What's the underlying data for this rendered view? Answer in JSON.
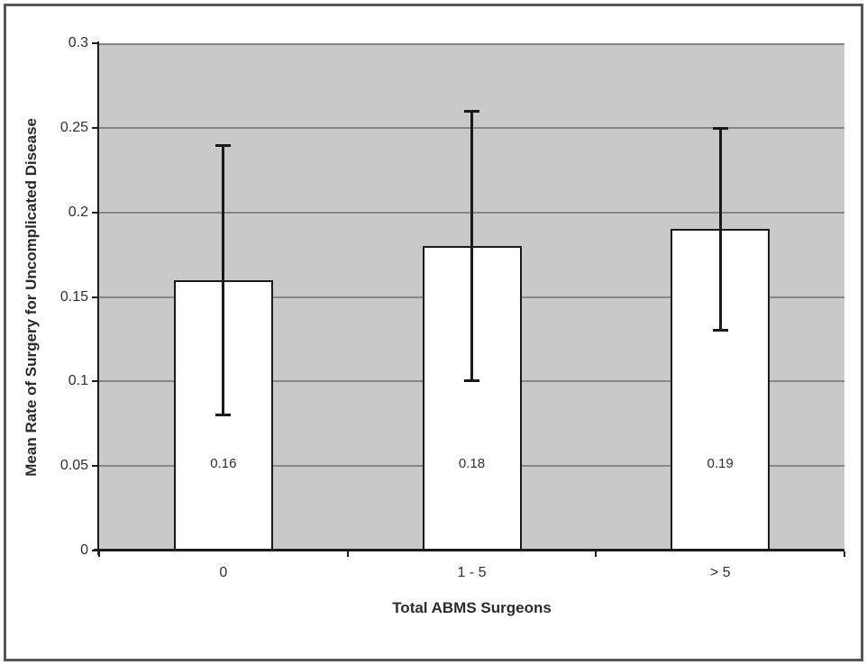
{
  "figure": {
    "background": "#ffffff",
    "border_color": "#565656"
  },
  "chart_data": {
    "type": "bar",
    "title": "",
    "xlabel": "Total ABMS Surgeons",
    "ylabel": "Mean Rate of Surgery for Uncomplicated Disease",
    "categories": [
      "0",
      "1 - 5",
      "> 5"
    ],
    "values": [
      0.16,
      0.18,
      0.19
    ],
    "bar_labels": [
      "0.16",
      "0.18",
      "0.19"
    ],
    "error_high": [
      0.24,
      0.26,
      0.25
    ],
    "error_low": [
      0.08,
      0.1,
      0.13
    ],
    "ylim": [
      0,
      0.3
    ],
    "ytick_step": 0.05,
    "ytick_labels": [
      "0",
      "0.05",
      "0.1",
      "0.15",
      "0.2",
      "0.25",
      "0.3"
    ],
    "ytick_values": [
      0,
      0.05,
      0.1,
      0.15,
      0.2,
      0.25,
      0.3
    ],
    "grid": "horizontal",
    "legend": "none",
    "plot_background": "#c9c9c9",
    "gridline_color": "#878787",
    "bar_fill": "#ffffff",
    "bar_border": "#1a1a1a",
    "error_bar_color": "#1a1a1a"
  }
}
